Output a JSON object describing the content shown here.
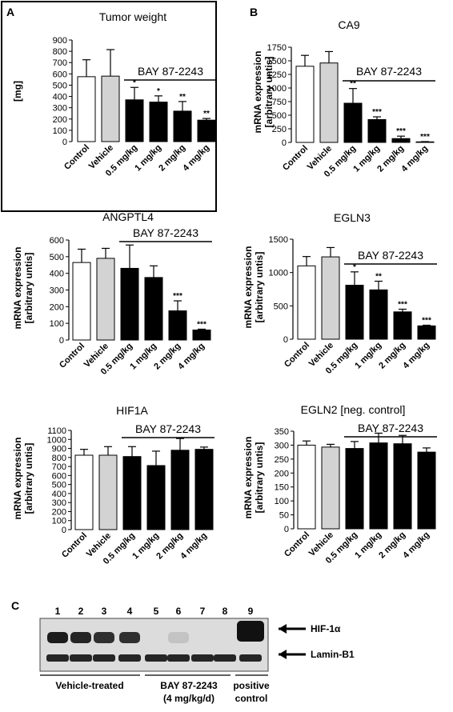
{
  "panel_letters": {
    "a": "A",
    "b": "B",
    "c": "C"
  },
  "chart_data": [
    {
      "id": "tumor",
      "type": "bar",
      "title": "Tumor weight",
      "ylabel": "[mg]",
      "ylabel2": "",
      "yticks": [
        0,
        100,
        200,
        300,
        400,
        500,
        600,
        700,
        800,
        900
      ],
      "ylim": [
        0,
        900
      ],
      "categories": [
        "Control",
        "Vehicle",
        "0.5 mg/kg",
        "1 mg/kg",
        "2 mg/kg",
        "4 mg/kg"
      ],
      "values": [
        575,
        580,
        370,
        350,
        270,
        190
      ],
      "errors": [
        150,
        235,
        110,
        55,
        85,
        15
      ],
      "significance": [
        "",
        "",
        "*",
        "*",
        "**",
        "**"
      ],
      "bracket_label": "BAY 87-2243"
    },
    {
      "id": "ca9",
      "type": "bar",
      "title": "CA9",
      "ylabel": "mRNA expression",
      "ylabel2": "[arbitrary untis]",
      "yticks": [
        0,
        250,
        500,
        750,
        1000,
        1250,
        1500,
        1750
      ],
      "ylim": [
        0,
        1750
      ],
      "categories": [
        "Control",
        "Vehicle",
        "0.5 mg/kg",
        "1 mg/kg",
        "2 mg/kg",
        "4 mg/kg"
      ],
      "values": [
        1400,
        1460,
        720,
        420,
        70,
        10
      ],
      "errors": [
        200,
        210,
        270,
        50,
        45,
        5
      ],
      "significance": [
        "",
        "",
        "**",
        "***",
        "***",
        "***"
      ],
      "bracket_label": "BAY 87-2243"
    },
    {
      "id": "angptl4",
      "type": "bar",
      "title": "ANGPTL4",
      "ylabel": "mRNA expression",
      "ylabel2": "[arbitrary untis]",
      "yticks": [
        0,
        100,
        200,
        300,
        400,
        500,
        600
      ],
      "ylim": [
        0,
        600
      ],
      "categories": [
        "Control",
        "Vehicle",
        "0.5 mg/kg",
        "1 mg/kg",
        "2 mg/kg",
        "4 mg/kg"
      ],
      "values": [
        465,
        490,
        430,
        375,
        175,
        60
      ],
      "errors": [
        80,
        60,
        140,
        70,
        60,
        5
      ],
      "significance": [
        "",
        "",
        "",
        "",
        "***",
        "***"
      ],
      "bracket_label": "BAY 87-2243"
    },
    {
      "id": "egln3",
      "type": "bar",
      "title": "EGLN3",
      "ylabel": "mRNA expression",
      "ylabel2": "[arbitrary untis]",
      "yticks": [
        0,
        500,
        1000,
        1500
      ],
      "ylim": [
        0,
        1500
      ],
      "categories": [
        "Control",
        "Vehicle",
        "0.5 mg/kg",
        "1 mg/kg",
        "2 mg/kg",
        "4 mg/kg"
      ],
      "values": [
        1100,
        1235,
        810,
        740,
        410,
        200
      ],
      "errors": [
        140,
        140,
        200,
        130,
        40,
        10
      ],
      "significance": [
        "",
        "",
        "*",
        "**",
        "***",
        "***"
      ],
      "bracket_label": "BAY 87-2243"
    },
    {
      "id": "hif1a",
      "type": "bar",
      "title": "HIF1A",
      "ylabel": "mRNA expression",
      "ylabel2": "[arbitrary untis]",
      "yticks": [
        0,
        100,
        200,
        300,
        400,
        500,
        600,
        700,
        800,
        900,
        1000,
        1100
      ],
      "ylim": [
        0,
        1100
      ],
      "categories": [
        "Control",
        "Vehicle",
        "0.5 mg/kg",
        "1 mg/kg",
        "2 mg/kg",
        "4 mg/kg"
      ],
      "values": [
        825,
        825,
        810,
        710,
        880,
        890
      ],
      "errors": [
        65,
        95,
        110,
        160,
        130,
        25
      ],
      "significance": [
        "",
        "",
        "",
        "",
        "",
        ""
      ],
      "bracket_label": "BAY 87-2243"
    },
    {
      "id": "egln2",
      "type": "bar",
      "title": "EGLN2 [neg. control]",
      "ylabel": "mRNA expression",
      "ylabel2": "[arbitrary untis]",
      "yticks": [
        0,
        50,
        100,
        150,
        200,
        250,
        300,
        350
      ],
      "ylim": [
        0,
        350
      ],
      "categories": [
        "Control",
        "Vehicle",
        "0.5 mg/kg",
        "1 mg/kg",
        "2 mg/kg",
        "4 mg/kg"
      ],
      "values": [
        300,
        293,
        288,
        308,
        305,
        275
      ],
      "errors": [
        15,
        10,
        25,
        35,
        30,
        15
      ],
      "significance": [
        "",
        "",
        "",
        "",
        "",
        ""
      ],
      "bracket_label": "BAY 87-2243"
    }
  ],
  "bar_colors": [
    "#ffffff",
    "#d3d3d3",
    "#000000",
    "#000000",
    "#000000",
    "#000000"
  ],
  "blot": {
    "lane_numbers": [
      "1",
      "2",
      "3",
      "4",
      "5",
      "6",
      "7",
      "8",
      "9"
    ],
    "band_hif": "HIF-1α",
    "band_lamin": "Lamin-B1",
    "group_vehicle": "Vehicle-treated",
    "group_bay_line1": "BAY 87-2243",
    "group_bay_line2": "(4 mg/kg/d)",
    "group_pos_line1": "positive",
    "group_pos_line2": "control"
  }
}
